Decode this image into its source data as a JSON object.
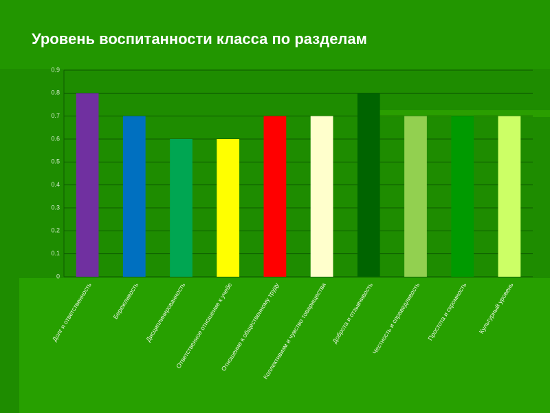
{
  "chart_data": {
    "type": "bar",
    "title": "Уровень воспитанности класса по разделам",
    "categories": [
      "Долг и ответственность",
      "Бережливость",
      "Дисциплинированность",
      "Ответственное отношение к учебе",
      "Отношение к общественному труду",
      "Коллективизм и чувство товарищества",
      "Доброта и отзывчивость",
      "Честность и справедливость",
      "Простота и скромность",
      "Культурный уровень"
    ],
    "values": [
      0.8,
      0.7,
      0.6,
      0.6,
      0.7,
      0.7,
      0.8,
      0.7,
      0.7,
      0.7
    ],
    "colors": [
      "#7030a0",
      "#0070c0",
      "#00a652",
      "#ffff00",
      "#ff0000",
      "#ffffcc",
      "#006400",
      "#92d050",
      "#009a00",
      "#ccff66"
    ],
    "ylim": [
      0,
      0.9
    ],
    "yticks": [
      0,
      0.1,
      0.2,
      0.3,
      0.4,
      0.5,
      0.6,
      0.7,
      0.8,
      0.9
    ],
    "grid": true
  }
}
